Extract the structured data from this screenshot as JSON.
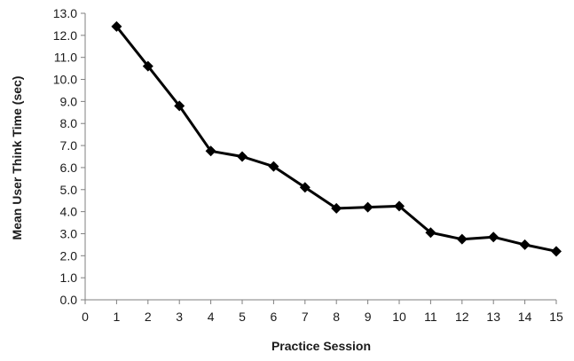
{
  "chart_data": {
    "type": "line",
    "title": "",
    "xlabel": "Practice Session",
    "ylabel": "Mean User Think Time (sec)",
    "x": [
      1,
      2,
      3,
      4,
      5,
      6,
      7,
      8,
      9,
      10,
      11,
      12,
      13,
      14,
      15
    ],
    "series": [
      {
        "values": [
          12.4,
          10.6,
          8.8,
          6.75,
          6.5,
          6.05,
          5.1,
          4.15,
          4.2,
          4.25,
          3.05,
          2.75,
          2.85,
          2.5,
          2.2
        ]
      }
    ],
    "xlim": [
      0,
      15
    ],
    "ylim": [
      0,
      13
    ],
    "x_ticks": [
      "0",
      "1",
      "2",
      "3",
      "4",
      "5",
      "6",
      "7",
      "8",
      "9",
      "10",
      "11",
      "12",
      "13",
      "14",
      "15"
    ],
    "y_ticks": [
      "0.0",
      "1.0",
      "2.0",
      "3.0",
      "4.0",
      "5.0",
      "6.0",
      "7.0",
      "8.0",
      "9.0",
      "10.0",
      "11.0",
      "12.0",
      "13.0"
    ],
    "marker": "diamond",
    "grid": false,
    "legend": "none",
    "colors": {
      "line": "#000000",
      "axis": "#7f7f7f",
      "text": "#1a1a1a"
    }
  }
}
